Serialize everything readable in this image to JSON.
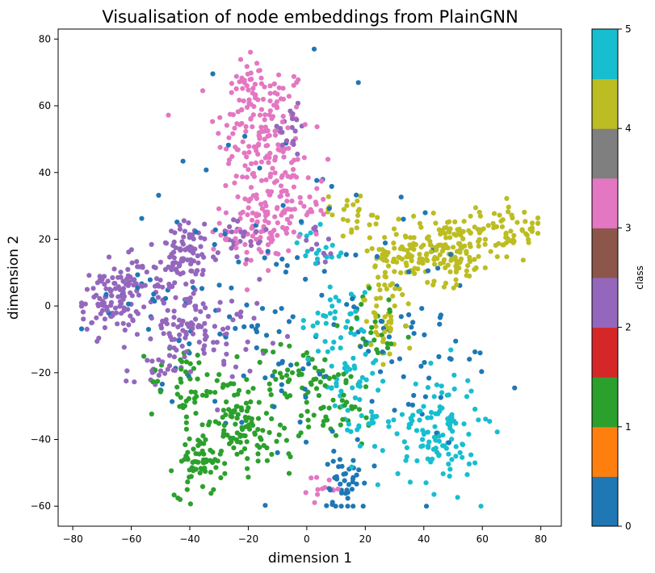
{
  "chart_data": {
    "type": "scatter",
    "title": "Visualisation of node embeddings from PlainGNN",
    "xlabel": "dimension 1",
    "ylabel": "dimension 2",
    "xlim": [
      -85,
      87
    ],
    "ylim": [
      -66,
      83
    ],
    "xticks": [
      -80,
      -60,
      -40,
      -20,
      0,
      20,
      40,
      60,
      80
    ],
    "yticks": [
      -60,
      -40,
      -20,
      0,
      20,
      40,
      60,
      80
    ],
    "grid": false,
    "colorbar": {
      "label": "class",
      "ticks": [
        0,
        1,
        2,
        3,
        4,
        5
      ],
      "colors": [
        "#1f77b4",
        "#ff7f0e",
        "#2ca02c",
        "#d62728",
        "#9467bd",
        "#8c564b",
        "#e377c2",
        "#7f7f7f",
        "#bcbd22",
        "#17becf"
      ]
    },
    "class_colors": {
      "0": "#1f77b4",
      "1": "#2ca02c",
      "2": "#9467bd",
      "3": "#e377c2",
      "4": "#bcbd22",
      "5": "#17becf"
    },
    "clusters": [
      {
        "class": 3,
        "cx": -15,
        "cy": 52,
        "sx": 8,
        "sy": 11,
        "n": 160
      },
      {
        "class": 3,
        "cx": -8,
        "cy": 30,
        "sx": 8,
        "sy": 6,
        "n": 80
      },
      {
        "class": 3,
        "cx": -17,
        "cy": 22,
        "sx": 6,
        "sy": 6,
        "n": 60
      },
      {
        "class": 3,
        "cx": -20,
        "cy": 68,
        "sx": 3,
        "sy": 4,
        "n": 25
      },
      {
        "class": 3,
        "cx": 6,
        "cy": -55,
        "sx": 3,
        "sy": 2,
        "n": 12
      },
      {
        "class": 2,
        "cx": -67,
        "cy": 2,
        "sx": 5,
        "sy": 5,
        "n": 110
      },
      {
        "class": 2,
        "cx": -40,
        "cy": 15,
        "sx": 5,
        "sy": 5,
        "n": 70
      },
      {
        "class": 2,
        "cx": -50,
        "cy": 8,
        "sx": 6,
        "sy": 5,
        "n": 50
      },
      {
        "class": 2,
        "cx": -42,
        "cy": -6,
        "sx": 5,
        "sy": 4,
        "n": 50
      },
      {
        "class": 2,
        "cx": -27,
        "cy": -8,
        "sx": 7,
        "sy": 6,
        "n": 40
      },
      {
        "class": 2,
        "cx": -52,
        "cy": -20,
        "sx": 5,
        "sy": 3,
        "n": 25
      },
      {
        "class": 2,
        "cx": -23,
        "cy": 20,
        "sx": 5,
        "sy": 4,
        "n": 25
      },
      {
        "class": 2,
        "cx": -6,
        "cy": 52,
        "sx": 4,
        "sy": 4,
        "n": 18
      },
      {
        "class": 2,
        "cx": 5,
        "cy": 18,
        "sx": 4,
        "sy": 3,
        "n": 12
      },
      {
        "class": 1,
        "cx": -37,
        "cy": -47,
        "sx": 4,
        "sy": 5,
        "n": 70
      },
      {
        "class": 1,
        "cx": -25,
        "cy": -33,
        "sx": 5,
        "sy": 6,
        "n": 60
      },
      {
        "class": 1,
        "cx": -15,
        "cy": -38,
        "sx": 7,
        "sy": 6,
        "n": 50
      },
      {
        "class": 1,
        "cx": -42,
        "cy": -23,
        "sx": 6,
        "sy": 6,
        "n": 45
      },
      {
        "class": 1,
        "cx": -5,
        "cy": -22,
        "sx": 8,
        "sy": 6,
        "n": 50
      },
      {
        "class": 1,
        "cx": 10,
        "cy": -30,
        "sx": 8,
        "sy": 7,
        "n": 40
      },
      {
        "class": 1,
        "cx": 25,
        "cy": -5,
        "sx": 6,
        "sy": 5,
        "n": 25
      },
      {
        "class": 4,
        "cx": 48,
        "cy": 17,
        "sx": 8,
        "sy": 5,
        "n": 150
      },
      {
        "class": 4,
        "cx": 70,
        "cy": 23,
        "sx": 6,
        "sy": 4,
        "n": 60
      },
      {
        "class": 4,
        "cx": 30,
        "cy": 14,
        "sx": 6,
        "sy": 5,
        "n": 60
      },
      {
        "class": 4,
        "cx": 26,
        "cy": -5,
        "sx": 4,
        "sy": 6,
        "n": 40
      },
      {
        "class": 4,
        "cx": 15,
        "cy": 28,
        "sx": 6,
        "sy": 3,
        "n": 25
      },
      {
        "class": 5,
        "cx": 45,
        "cy": -37,
        "sx": 7,
        "sy": 9,
        "n": 120
      },
      {
        "class": 5,
        "cx": 16,
        "cy": -22,
        "sx": 6,
        "sy": 6,
        "n": 35
      },
      {
        "class": 5,
        "cx": 20,
        "cy": -35,
        "sx": 4,
        "sy": 5,
        "n": 25
      },
      {
        "class": 5,
        "cx": 10,
        "cy": -5,
        "sx": 6,
        "sy": 5,
        "n": 35
      },
      {
        "class": 5,
        "cx": 5,
        "cy": 18,
        "sx": 5,
        "sy": 5,
        "n": 20
      },
      {
        "class": 0,
        "cx": 12,
        "cy": -53,
        "sx": 3,
        "sy": 4,
        "n": 40
      },
      {
        "class": 0,
        "cx": 0,
        "cy": 0,
        "sx": 28,
        "sy": 28,
        "n": 110
      },
      {
        "class": 0,
        "cx": -30,
        "cy": 0,
        "sx": 15,
        "sy": 15,
        "n": 30
      },
      {
        "class": 0,
        "cx": 40,
        "cy": -10,
        "sx": 12,
        "sy": 15,
        "n": 30
      },
      {
        "class": 0,
        "cx": -60,
        "cy": 0,
        "sx": 7,
        "sy": 6,
        "n": 12
      }
    ]
  }
}
